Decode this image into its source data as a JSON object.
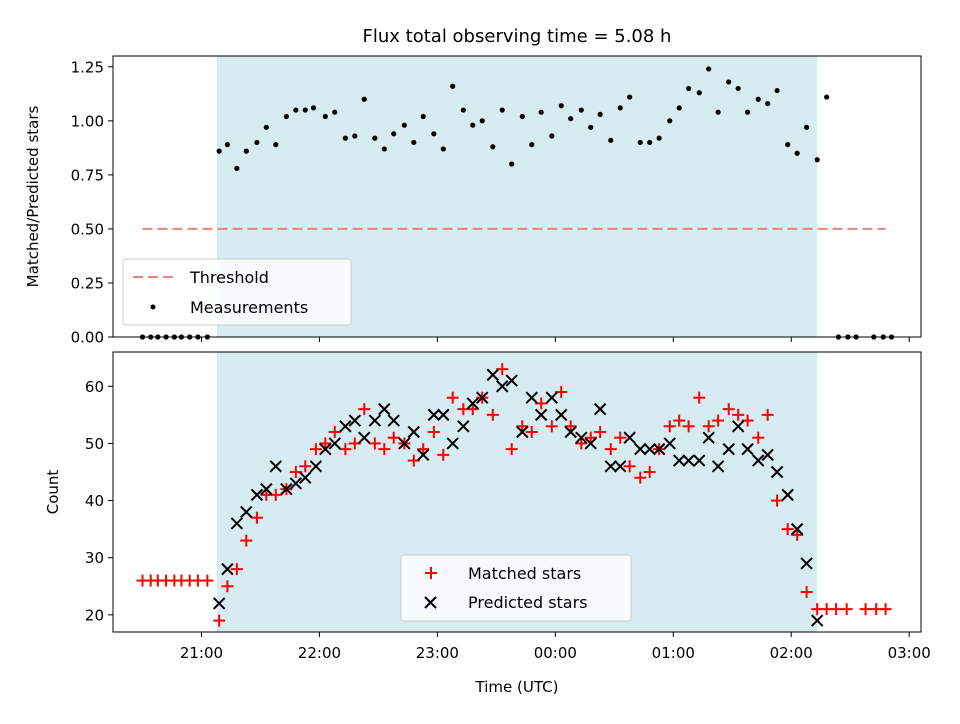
{
  "chart_data": [
    {
      "type": "scatter",
      "title": "Flux total observing time = 5.08 h",
      "ylabel": "Matched/Predicted stars",
      "xlabel": "",
      "ylim": [
        0,
        1.3
      ],
      "yticks": [
        0,
        0.25,
        0.5,
        0.75,
        1.0,
        1.25
      ],
      "ytick_labels": [
        "0.00",
        "0.25",
        "0.50",
        "0.75",
        "1.00",
        "1.25"
      ],
      "xlim": [
        20.25,
        27.1
      ],
      "shaded_interval": {
        "start": 21.13,
        "end": 26.22,
        "color": "#add8e6"
      },
      "threshold": {
        "name": "Threshold",
        "value": 0.5,
        "x": [
          20.5,
          26.8
        ],
        "color": "#f08080"
      },
      "series": [
        {
          "name": "Measurements",
          "color": "#000000",
          "marker": "dot",
          "points": [
            [
              20.5,
              0
            ],
            [
              20.57,
              0
            ],
            [
              20.63,
              0
            ],
            [
              20.7,
              0
            ],
            [
              20.77,
              0
            ],
            [
              20.83,
              0
            ],
            [
              20.9,
              0
            ],
            [
              20.97,
              0
            ],
            [
              21.05,
              0
            ],
            [
              21.15,
              0.86
            ],
            [
              21.22,
              0.89
            ],
            [
              21.3,
              0.78
            ],
            [
              21.38,
              0.86
            ],
            [
              21.47,
              0.9
            ],
            [
              21.55,
              0.97
            ],
            [
              21.63,
              0.89
            ],
            [
              21.72,
              1.02
            ],
            [
              21.8,
              1.05
            ],
            [
              21.88,
              1.05
            ],
            [
              21.95,
              1.06
            ],
            [
              22.05,
              1.02
            ],
            [
              22.13,
              1.04
            ],
            [
              22.22,
              0.92
            ],
            [
              22.3,
              0.93
            ],
            [
              22.38,
              1.1
            ],
            [
              22.47,
              0.92
            ],
            [
              22.55,
              0.87
            ],
            [
              22.63,
              0.94
            ],
            [
              22.72,
              0.98
            ],
            [
              22.8,
              0.9
            ],
            [
              22.88,
              1.02
            ],
            [
              22.97,
              0.94
            ],
            [
              23.05,
              0.87
            ],
            [
              23.13,
              1.16
            ],
            [
              23.22,
              1.05
            ],
            [
              23.3,
              0.98
            ],
            [
              23.38,
              1.0
            ],
            [
              23.47,
              0.88
            ],
            [
              23.55,
              1.05
            ],
            [
              23.63,
              0.8
            ],
            [
              23.72,
              1.02
            ],
            [
              23.8,
              0.89
            ],
            [
              23.88,
              1.04
            ],
            [
              23.97,
              0.93
            ],
            [
              24.05,
              1.07
            ],
            [
              24.13,
              1.01
            ],
            [
              24.22,
              1.05
            ],
            [
              24.3,
              0.97
            ],
            [
              24.38,
              1.03
            ],
            [
              24.47,
              0.91
            ],
            [
              24.55,
              1.06
            ],
            [
              24.63,
              1.11
            ],
            [
              24.72,
              0.9
            ],
            [
              24.8,
              0.9
            ],
            [
              24.88,
              0.92
            ],
            [
              24.97,
              1.0
            ],
            [
              25.05,
              1.06
            ],
            [
              25.13,
              1.15
            ],
            [
              25.22,
              1.13
            ],
            [
              25.3,
              1.24
            ],
            [
              25.38,
              1.04
            ],
            [
              25.47,
              1.18
            ],
            [
              25.55,
              1.15
            ],
            [
              25.63,
              1.04
            ],
            [
              25.72,
              1.1
            ],
            [
              25.8,
              1.08
            ],
            [
              25.88,
              1.14
            ],
            [
              25.97,
              0.89
            ],
            [
              26.05,
              0.85
            ],
            [
              26.13,
              0.97
            ],
            [
              26.22,
              0.82
            ],
            [
              26.3,
              1.11
            ],
            [
              26.4,
              0
            ],
            [
              26.48,
              0
            ],
            [
              26.55,
              0
            ],
            [
              26.7,
              0
            ],
            [
              26.78,
              0
            ],
            [
              26.85,
              0
            ]
          ]
        }
      ],
      "legend": {
        "position": "lower-left",
        "entries": [
          "Threshold",
          "Measurements"
        ]
      }
    },
    {
      "type": "scatter",
      "title": "",
      "ylabel": "Count",
      "xlabel": "Time (UTC)",
      "ylim": [
        17,
        66
      ],
      "yticks": [
        20,
        30,
        40,
        50,
        60
      ],
      "ytick_labels": [
        "20",
        "30",
        "40",
        "50",
        "60"
      ],
      "xlim": [
        20.25,
        27.1
      ],
      "xticks": [
        21,
        22,
        23,
        24,
        25,
        26,
        27
      ],
      "xtick_labels": [
        "21:00",
        "22:00",
        "23:00",
        "00:00",
        "01:00",
        "02:00",
        "03:00"
      ],
      "shaded_interval": {
        "start": 21.13,
        "end": 26.22,
        "color": "#add8e6"
      },
      "series": [
        {
          "name": "Matched stars",
          "color": "#ff0000",
          "marker": "plus",
          "points": [
            [
              20.5,
              26
            ],
            [
              20.57,
              26
            ],
            [
              20.63,
              26
            ],
            [
              20.7,
              26
            ],
            [
              20.77,
              26
            ],
            [
              20.83,
              26
            ],
            [
              20.9,
              26
            ],
            [
              20.97,
              26
            ],
            [
              21.05,
              26
            ],
            [
              21.15,
              19
            ],
            [
              21.22,
              25
            ],
            [
              21.3,
              28
            ],
            [
              21.38,
              33
            ],
            [
              21.47,
              37
            ],
            [
              21.55,
              41
            ],
            [
              21.63,
              41
            ],
            [
              21.72,
              42
            ],
            [
              21.8,
              45
            ],
            [
              21.88,
              46
            ],
            [
              21.97,
              49
            ],
            [
              22.05,
              50
            ],
            [
              22.13,
              52
            ],
            [
              22.22,
              49
            ],
            [
              22.3,
              50
            ],
            [
              22.38,
              56
            ],
            [
              22.47,
              50
            ],
            [
              22.55,
              49
            ],
            [
              22.63,
              51
            ],
            [
              22.72,
              50
            ],
            [
              22.8,
              47
            ],
            [
              22.88,
              49
            ],
            [
              22.97,
              52
            ],
            [
              23.05,
              48
            ],
            [
              23.13,
              58
            ],
            [
              23.22,
              56
            ],
            [
              23.3,
              56
            ],
            [
              23.38,
              58
            ],
            [
              23.47,
              55
            ],
            [
              23.55,
              63
            ],
            [
              23.63,
              49
            ],
            [
              23.72,
              53
            ],
            [
              23.8,
              52
            ],
            [
              23.88,
              57
            ],
            [
              23.97,
              53
            ],
            [
              24.05,
              59
            ],
            [
              24.13,
              53
            ],
            [
              24.22,
              50
            ],
            [
              24.3,
              51
            ],
            [
              24.38,
              52
            ],
            [
              24.47,
              49
            ],
            [
              24.55,
              51
            ],
            [
              24.63,
              46
            ],
            [
              24.72,
              44
            ],
            [
              24.8,
              45
            ],
            [
              24.88,
              49
            ],
            [
              24.97,
              53
            ],
            [
              25.05,
              54
            ],
            [
              25.13,
              53
            ],
            [
              25.22,
              58
            ],
            [
              25.3,
              53
            ],
            [
              25.38,
              54
            ],
            [
              25.47,
              56
            ],
            [
              25.55,
              55
            ],
            [
              25.63,
              54
            ],
            [
              25.72,
              51
            ],
            [
              25.8,
              55
            ],
            [
              25.88,
              40
            ],
            [
              25.97,
              35
            ],
            [
              26.05,
              34
            ],
            [
              26.13,
              24
            ],
            [
              26.22,
              21
            ],
            [
              26.3,
              21
            ],
            [
              26.38,
              21
            ],
            [
              26.47,
              21
            ],
            [
              26.63,
              21
            ],
            [
              26.72,
              21
            ],
            [
              26.8,
              21
            ]
          ]
        },
        {
          "name": "Predicted stars",
          "color": "#000000",
          "marker": "x",
          "points": [
            [
              21.15,
              22
            ],
            [
              21.22,
              28
            ],
            [
              21.3,
              36
            ],
            [
              21.38,
              38
            ],
            [
              21.47,
              41
            ],
            [
              21.55,
              42
            ],
            [
              21.63,
              46
            ],
            [
              21.72,
              42
            ],
            [
              21.8,
              43
            ],
            [
              21.88,
              44
            ],
            [
              21.97,
              46
            ],
            [
              22.05,
              49
            ],
            [
              22.13,
              50
            ],
            [
              22.22,
              53
            ],
            [
              22.3,
              54
            ],
            [
              22.38,
              51
            ],
            [
              22.47,
              54
            ],
            [
              22.55,
              56
            ],
            [
              22.63,
              54
            ],
            [
              22.72,
              50
            ],
            [
              22.8,
              52
            ],
            [
              22.88,
              48
            ],
            [
              22.97,
              55
            ],
            [
              23.05,
              55
            ],
            [
              23.13,
              50
            ],
            [
              23.22,
              53
            ],
            [
              23.3,
              57
            ],
            [
              23.38,
              58
            ],
            [
              23.47,
              62
            ],
            [
              23.55,
              60
            ],
            [
              23.63,
              61
            ],
            [
              23.72,
              52
            ],
            [
              23.8,
              58
            ],
            [
              23.88,
              55
            ],
            [
              23.97,
              58
            ],
            [
              24.05,
              55
            ],
            [
              24.13,
              52
            ],
            [
              24.22,
              51
            ],
            [
              24.3,
              50
            ],
            [
              24.38,
              56
            ],
            [
              24.47,
              46
            ],
            [
              24.55,
              46
            ],
            [
              24.63,
              51
            ],
            [
              24.72,
              49
            ],
            [
              24.8,
              49
            ],
            [
              24.88,
              49
            ],
            [
              24.97,
              50
            ],
            [
              25.05,
              47
            ],
            [
              25.13,
              47
            ],
            [
              25.22,
              47
            ],
            [
              25.3,
              51
            ],
            [
              25.38,
              46
            ],
            [
              25.47,
              49
            ],
            [
              25.55,
              53
            ],
            [
              25.63,
              49
            ],
            [
              25.72,
              47
            ],
            [
              25.8,
              48
            ],
            [
              25.88,
              45
            ],
            [
              25.97,
              41
            ],
            [
              26.05,
              35
            ],
            [
              26.13,
              29
            ],
            [
              26.22,
              19
            ]
          ]
        }
      ],
      "legend": {
        "position": "bottom-center",
        "entries": [
          "Matched stars",
          "Predicted stars"
        ]
      }
    }
  ]
}
